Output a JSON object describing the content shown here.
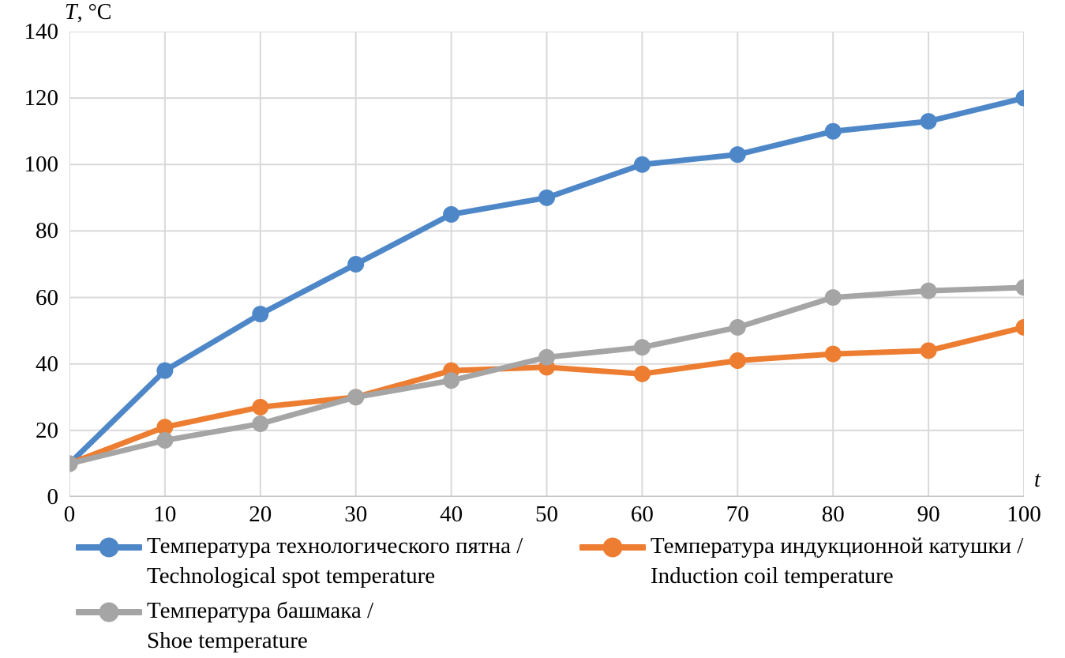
{
  "chart_data": {
    "type": "line",
    "x": [
      0,
      10,
      20,
      30,
      40,
      50,
      60,
      70,
      80,
      90,
      100
    ],
    "x_tick_labels": [
      "0",
      "10",
      "20",
      "30",
      "40",
      "50",
      "60",
      "70",
      "80",
      "90",
      "100"
    ],
    "y_tick_labels": [
      "0",
      "20",
      "40",
      "60",
      "80",
      "100",
      "120",
      "140"
    ],
    "xlim": [
      0,
      100
    ],
    "ylim": [
      0,
      140
    ],
    "y_tick_step": 20,
    "x_tick_step": 10,
    "grid": true,
    "legend_position": "bottom",
    "y_axis_var": "T",
    "y_axis_unit": ", °C",
    "x_axis_title": "t",
    "series": [
      {
        "name": "Температура технологического пятна / Technological spot temperature",
        "legend_line1": "Температура технологического пятна /",
        "legend_line2": "Technological spot temperature",
        "color": "#4E87C8",
        "values": [
          10,
          38,
          55,
          70,
          85,
          90,
          100,
          103,
          110,
          113,
          120
        ]
      },
      {
        "name": "Температура индукционной катушки / Induction coil temperature",
        "legend_line1": "Температура индукционной катушки /",
        "legend_line2": "Induction coil temperature",
        "color": "#ED7D31",
        "values": [
          10,
          21,
          27,
          30,
          38,
          39,
          37,
          41,
          43,
          44,
          51
        ]
      },
      {
        "name": "Температура башмака / Shoe temperature",
        "legend_line1": "Температура башмака /",
        "legend_line2": "Shoe temperature",
        "color": "#A5A5A5",
        "values": [
          10,
          17,
          22,
          30,
          35,
          42,
          45,
          51,
          60,
          62,
          63
        ]
      }
    ],
    "colors": {
      "gridline": "#D9D9D9",
      "axis_line": "#C3C3C3",
      "text": "#000000"
    }
  }
}
